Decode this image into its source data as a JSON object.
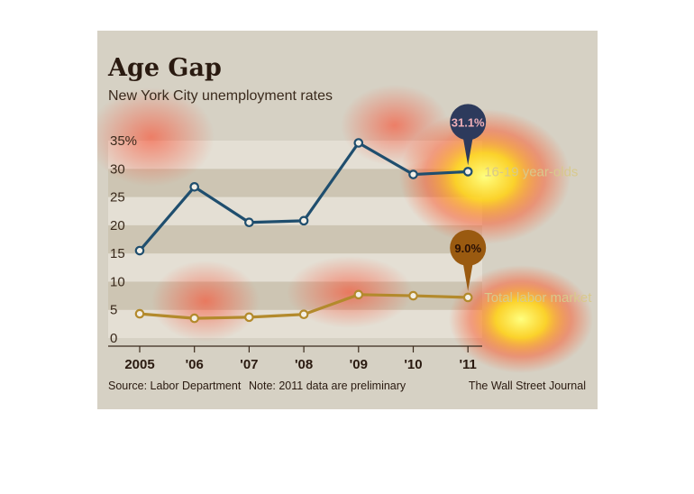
{
  "chart_data": {
    "type": "line",
    "title": "Age Gap",
    "subtitle": "New York City unemployment rates",
    "categories": [
      "2005",
      "'06",
      "'07",
      "'08",
      "'09",
      "'10",
      "'11"
    ],
    "ylim": [
      0,
      35
    ],
    "yticks": [
      "35%",
      "30",
      "25",
      "20",
      "15",
      "10",
      "5",
      "0"
    ],
    "series": [
      {
        "name": "16-19 year-olds",
        "values": [
          15.5,
          26.8,
          20.5,
          20.8,
          34.6,
          29.0,
          29.5
        ],
        "color": "#1f4e6e",
        "callout": "31.1%",
        "callout_color": "#2d3a5c"
      },
      {
        "name": "Total labor market",
        "values": [
          4.3,
          3.5,
          3.7,
          4.2,
          7.7,
          7.5,
          7.2
        ],
        "color": "#b38a2c",
        "callout": "9.0%",
        "callout_color": "#9a5a10"
      }
    ],
    "source": "Source: Labor Department",
    "note": "Note: 2011 data are preliminary",
    "credit": "The Wall Street Journal",
    "legend": "inline-right",
    "grid": "horizontal-bands"
  }
}
